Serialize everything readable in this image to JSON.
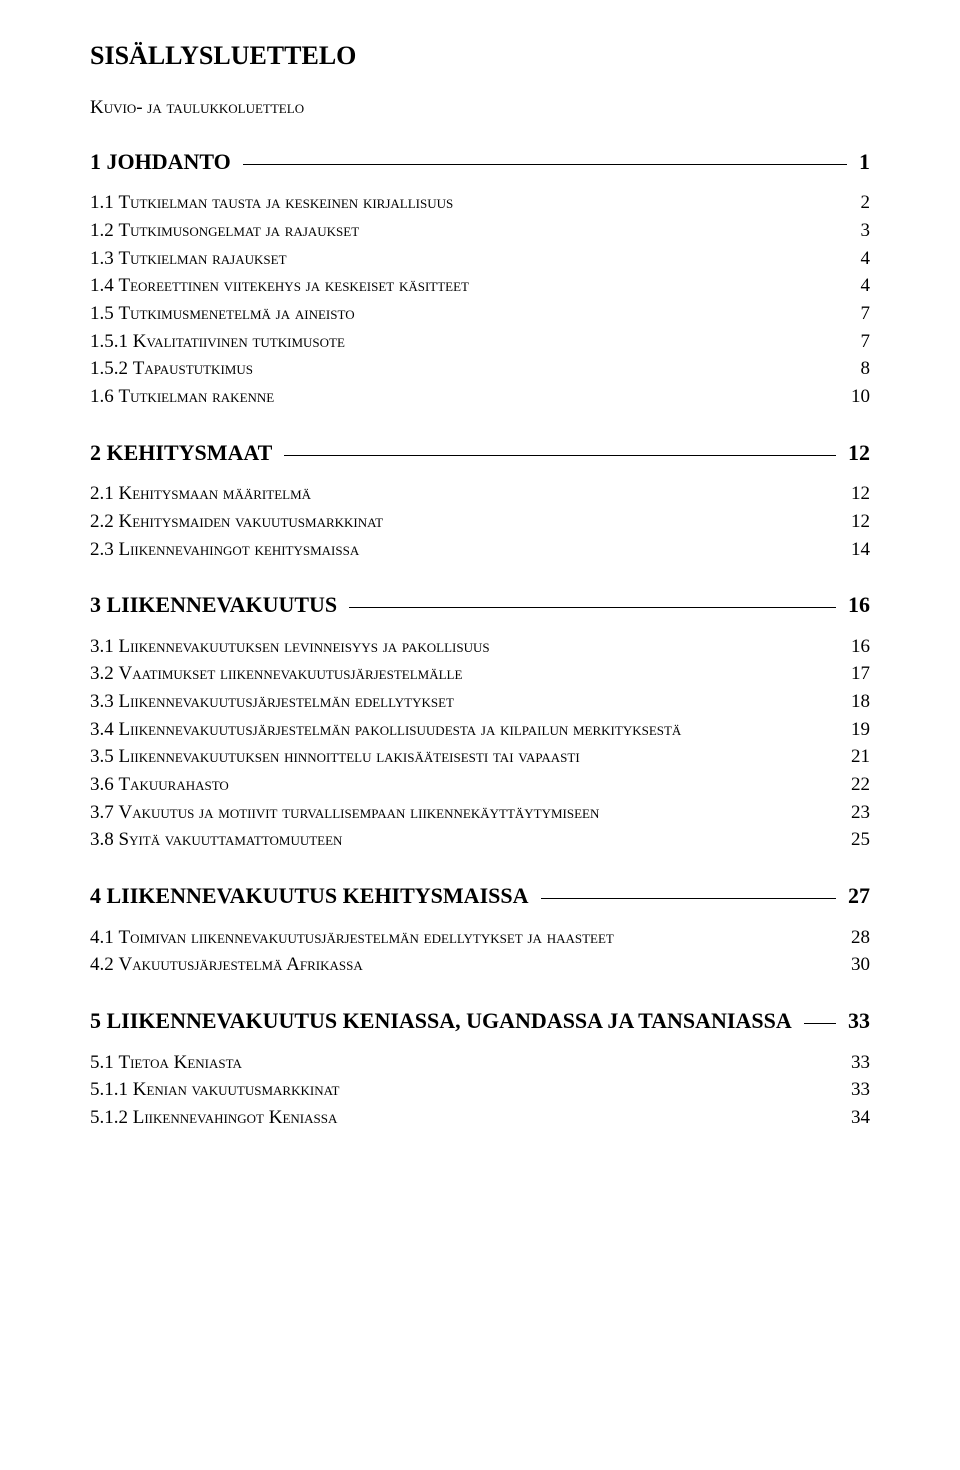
{
  "title": "SISÄLLYSLUETTELO",
  "subheading": "Kuvio- ja taulukkoluettelo",
  "sections": [
    {
      "heading_label": "1 JOHDANTO",
      "heading_page": "1",
      "items": [
        {
          "label_prefix": "1.1 ",
          "label_sc": "Tutkielman tausta ja keskeinen kirjallisuus",
          "page": "2"
        },
        {
          "label_prefix": "1.2 ",
          "label_sc": "Tutkimusongelmat ja rajaukset",
          "page": "3"
        },
        {
          "label_prefix": "1.3 ",
          "label_sc": "Tutkielman rajaukset",
          "page": "4"
        },
        {
          "label_prefix": "1.4 ",
          "label_sc": "Teoreettinen viitekehys ja keskeiset käsitteet",
          "page": "4"
        },
        {
          "label_prefix": "1.5 ",
          "label_sc": "Tutkimusmenetelmä ja aineisto",
          "page": "7"
        },
        {
          "label_prefix": "1.5.1 ",
          "label_sc": "Kvalitatiivinen tutkimusote",
          "page": "7"
        },
        {
          "label_prefix": "1.5.2 ",
          "label_sc": "Tapaustutkimus",
          "page": "8"
        },
        {
          "label_prefix": "1.6 ",
          "label_sc": "Tutkielman rakenne",
          "page": "10"
        }
      ]
    },
    {
      "heading_label": "2 KEHITYSMAAT",
      "heading_page": "12",
      "items": [
        {
          "label_prefix": "2.1 ",
          "label_sc": "Kehitysmaan määritelmä",
          "page": "12"
        },
        {
          "label_prefix": "2.2 ",
          "label_sc": "Kehitysmaiden vakuutusmarkkinat",
          "page": "12"
        },
        {
          "label_prefix": "2.3 ",
          "label_sc": "Liikennevahingot kehitysmaissa",
          "page": "14"
        }
      ]
    },
    {
      "heading_label": "3 LIIKENNEVAKUUTUS",
      "heading_page": "16",
      "items": [
        {
          "label_prefix": "3.1 ",
          "label_sc": "Liikennevakuutuksen levinneisyys ja pakollisuus",
          "page": "16"
        },
        {
          "label_prefix": "3.2 ",
          "label_sc": "Vaatimukset liikennevakuutusjärjestelmälle",
          "page": "17"
        },
        {
          "label_prefix": "3.3 ",
          "label_sc": "Liikennevakuutusjärjestelmän edellytykset",
          "page": "18"
        },
        {
          "label_prefix": "3.4 ",
          "label_sc": "Liikennevakuutusjärjestelmän pakollisuudesta ja kilpailun merkityksestä",
          "page": "19",
          "wrap": true
        },
        {
          "label_prefix": "3.5 ",
          "label_sc": "Liikennevakuutuksen hinnoittelu lakisääteisesti tai vapaasti",
          "page": "21"
        },
        {
          "label_prefix": "3.6 ",
          "label_sc": "Takuurahasto",
          "page": "22"
        },
        {
          "label_prefix": "3.7 ",
          "label_sc": "Vakuutus ja motiivit turvallisempaan liikennekäyttäytymiseen",
          "page": "23"
        },
        {
          "label_prefix": "3.8 ",
          "label_sc": "Syitä vakuuttamattomuuteen",
          "page": "25"
        }
      ]
    },
    {
      "heading_label": "4 LIIKENNEVAKUUTUS KEHITYSMAISSA",
      "heading_page": "27",
      "items": [
        {
          "label_prefix": "4.1 ",
          "label_sc": "Toimivan liikennevakuutusjärjestelmän edellytykset ja haasteet",
          "page": "28"
        },
        {
          "label_prefix": "4.2 ",
          "label_sc": "Vakuutusjärjestelmä Afrikassa",
          "page": "30"
        }
      ]
    },
    {
      "heading_label": "5 LIIKENNEVAKUUTUS KENIASSA, UGANDASSA JA TANSANIASSA",
      "heading_page": "33",
      "items": [
        {
          "label_prefix": "5.1 ",
          "label_sc": "Tietoa Keniasta",
          "page": "33"
        },
        {
          "label_prefix": "5.1.1 ",
          "label_sc": "Kenian vakuutusmarkkinat",
          "page": "33"
        },
        {
          "label_prefix": "5.1.2 ",
          "label_sc": "Liikennevahingot Keniassa",
          "page": "34"
        }
      ]
    }
  ]
}
